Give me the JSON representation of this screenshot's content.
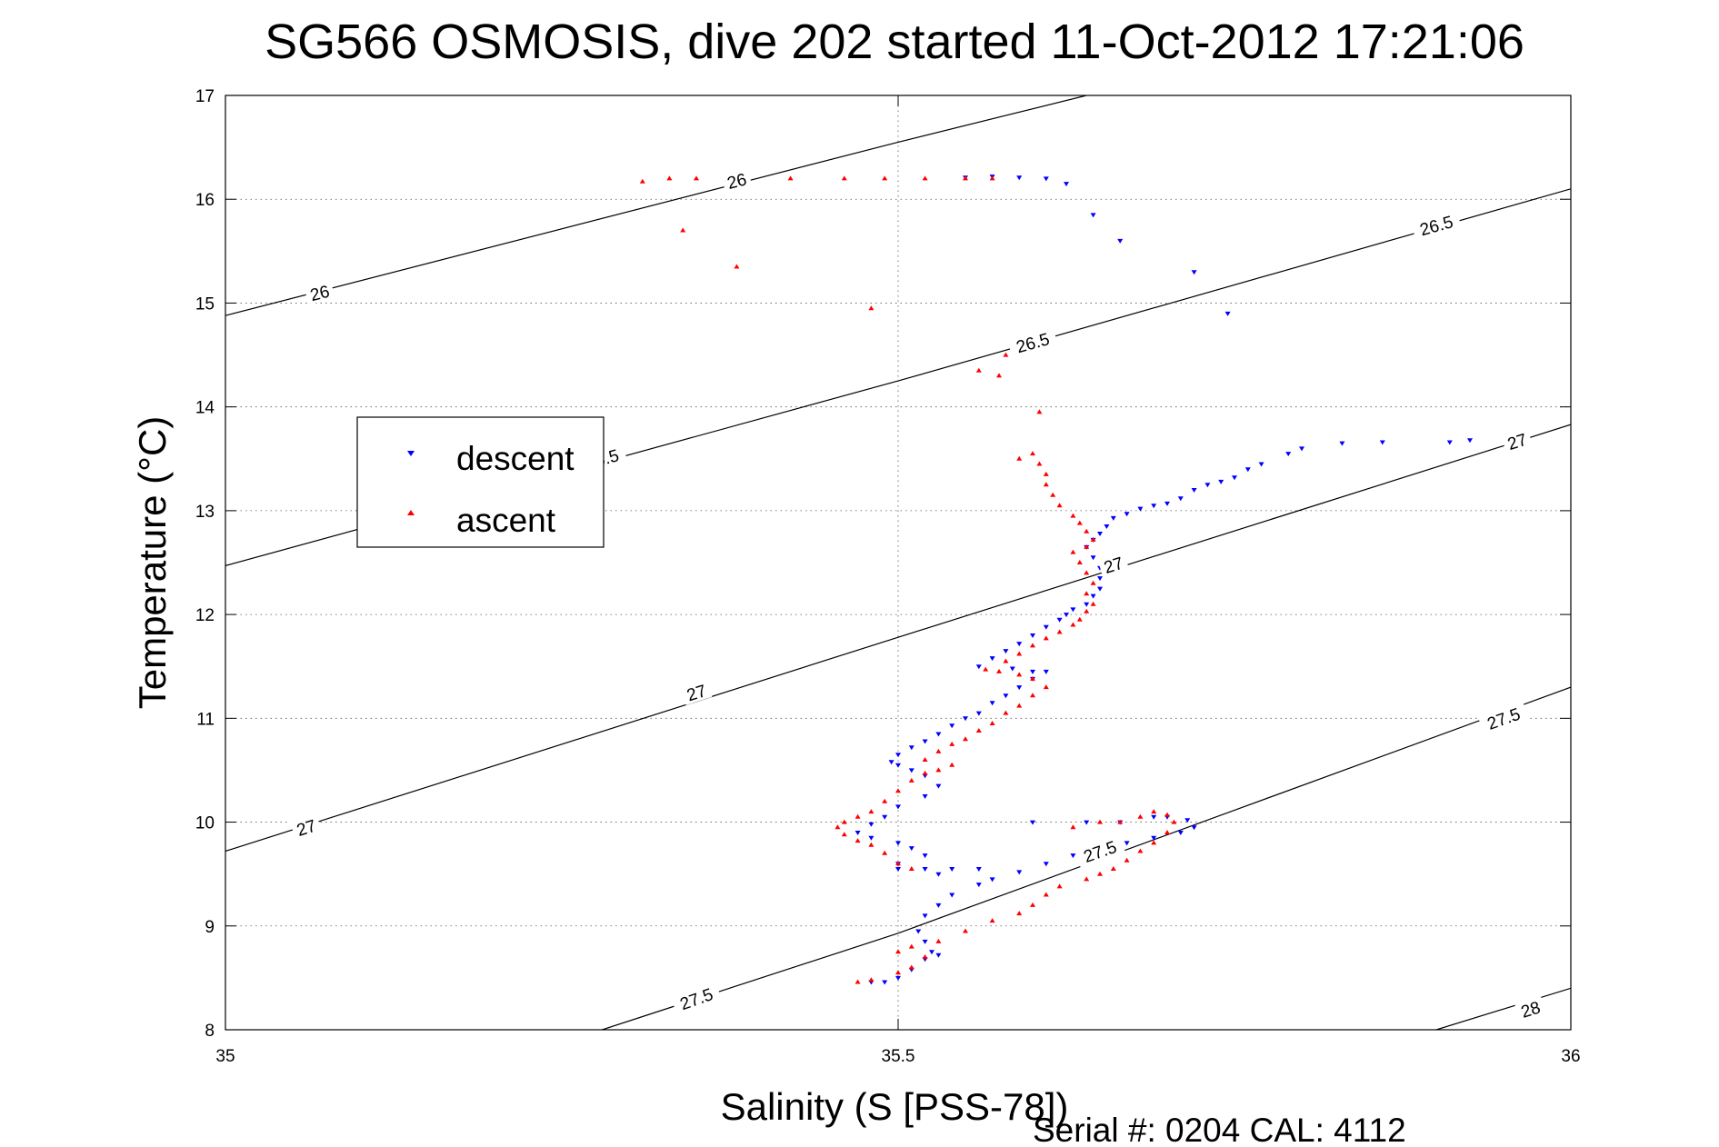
{
  "chart_data": {
    "type": "scatter",
    "title": "SG566 OSMOSIS, dive 202 started 11-Oct-2012 17:21:06",
    "xlabel": "Salinity (S [PSS-78])",
    "ylabel": "Temperature (°C)",
    "xlim": [
      35,
      36
    ],
    "ylim": [
      8,
      17
    ],
    "x_ticks": [
      "35",
      "35.5",
      "36"
    ],
    "y_ticks": [
      "8",
      "9",
      "10",
      "11",
      "12",
      "13",
      "14",
      "15",
      "16",
      "17"
    ],
    "grid": true,
    "legend_position": "left",
    "footer": "Serial #: 0204  CAL: 4112",
    "series": [
      {
        "name": "descent",
        "color": "#0000ff",
        "marker": "triangle-down",
        "points": [
          [
            35.55,
            16.21
          ],
          [
            35.57,
            16.22
          ],
          [
            35.59,
            16.21
          ],
          [
            35.61,
            16.2
          ],
          [
            35.625,
            16.15
          ],
          [
            35.645,
            15.85
          ],
          [
            35.665,
            15.6
          ],
          [
            35.72,
            15.3
          ],
          [
            35.745,
            14.9
          ],
          [
            35.925,
            13.68
          ],
          [
            35.91,
            13.66
          ],
          [
            35.86,
            13.66
          ],
          [
            35.83,
            13.65
          ],
          [
            35.8,
            13.6
          ],
          [
            35.79,
            13.55
          ],
          [
            35.77,
            13.45
          ],
          [
            35.76,
            13.4
          ],
          [
            35.75,
            13.32
          ],
          [
            35.74,
            13.28
          ],
          [
            35.73,
            13.25
          ],
          [
            35.72,
            13.2
          ],
          [
            35.71,
            13.12
          ],
          [
            35.7,
            13.07
          ],
          [
            35.69,
            13.05
          ],
          [
            35.68,
            13.02
          ],
          [
            35.67,
            12.97
          ],
          [
            35.66,
            12.93
          ],
          [
            35.655,
            12.85
          ],
          [
            35.65,
            12.78
          ],
          [
            35.645,
            12.72
          ],
          [
            35.64,
            12.65
          ],
          [
            35.645,
            12.55
          ],
          [
            35.65,
            12.45
          ],
          [
            35.65,
            12.35
          ],
          [
            35.65,
            12.25
          ],
          [
            35.645,
            12.18
          ],
          [
            35.64,
            12.1
          ],
          [
            35.63,
            12.05
          ],
          [
            35.625,
            12.0
          ],
          [
            35.62,
            11.95
          ],
          [
            35.61,
            11.88
          ],
          [
            35.6,
            11.8
          ],
          [
            35.59,
            11.72
          ],
          [
            35.58,
            11.65
          ],
          [
            35.57,
            11.58
          ],
          [
            35.56,
            11.5
          ],
          [
            35.585,
            11.48
          ],
          [
            35.6,
            11.45
          ],
          [
            35.61,
            11.45
          ],
          [
            35.6,
            11.38
          ],
          [
            35.59,
            11.3
          ],
          [
            35.58,
            11.22
          ],
          [
            35.57,
            11.15
          ],
          [
            35.56,
            11.05
          ],
          [
            35.55,
            11.0
          ],
          [
            35.54,
            10.93
          ],
          [
            35.53,
            10.85
          ],
          [
            35.52,
            10.78
          ],
          [
            35.51,
            10.72
          ],
          [
            35.5,
            10.65
          ],
          [
            35.495,
            10.58
          ],
          [
            35.5,
            10.55
          ],
          [
            35.51,
            10.5
          ],
          [
            35.52,
            10.45
          ],
          [
            35.53,
            10.35
          ],
          [
            35.52,
            10.25
          ],
          [
            35.5,
            10.15
          ],
          [
            35.49,
            10.05
          ],
          [
            35.48,
            9.98
          ],
          [
            35.47,
            9.9
          ],
          [
            35.48,
            9.85
          ],
          [
            35.5,
            9.8
          ],
          [
            35.51,
            9.75
          ],
          [
            35.52,
            9.68
          ],
          [
            35.5,
            9.6
          ],
          [
            35.5,
            9.55
          ],
          [
            35.52,
            9.55
          ],
          [
            35.53,
            9.5
          ],
          [
            35.54,
            9.55
          ],
          [
            35.56,
            9.55
          ],
          [
            35.6,
            10.0
          ],
          [
            35.64,
            10.0
          ],
          [
            35.665,
            10.0
          ],
          [
            35.69,
            10.05
          ],
          [
            35.7,
            10.05
          ],
          [
            35.715,
            10.02
          ],
          [
            35.72,
            9.95
          ],
          [
            35.71,
            9.9
          ],
          [
            35.69,
            9.85
          ],
          [
            35.67,
            9.8
          ],
          [
            35.65,
            9.75
          ],
          [
            35.63,
            9.68
          ],
          [
            35.61,
            9.6
          ],
          [
            35.59,
            9.52
          ],
          [
            35.57,
            9.45
          ],
          [
            35.56,
            9.4
          ],
          [
            35.54,
            9.3
          ],
          [
            35.53,
            9.2
          ],
          [
            35.52,
            9.1
          ],
          [
            35.515,
            8.95
          ],
          [
            35.52,
            8.85
          ],
          [
            35.525,
            8.75
          ],
          [
            35.53,
            8.72
          ],
          [
            35.52,
            8.68
          ],
          [
            35.51,
            8.58
          ],
          [
            35.5,
            8.5
          ],
          [
            35.49,
            8.46
          ],
          [
            35.48,
            8.46
          ]
        ]
      },
      {
        "name": "ascent",
        "color": "#ff0000",
        "marker": "triangle-up",
        "points": [
          [
            35.47,
            8.46
          ],
          [
            35.48,
            8.48
          ],
          [
            35.5,
            8.55
          ],
          [
            35.51,
            8.6
          ],
          [
            35.52,
            8.7
          ],
          [
            35.5,
            8.75
          ],
          [
            35.51,
            8.8
          ],
          [
            35.53,
            8.85
          ],
          [
            35.55,
            8.95
          ],
          [
            35.57,
            9.05
          ],
          [
            35.59,
            9.12
          ],
          [
            35.6,
            9.2
          ],
          [
            35.61,
            9.3
          ],
          [
            35.62,
            9.38
          ],
          [
            35.64,
            9.45
          ],
          [
            35.65,
            9.5
          ],
          [
            35.66,
            9.55
          ],
          [
            35.67,
            9.63
          ],
          [
            35.68,
            9.72
          ],
          [
            35.69,
            9.8
          ],
          [
            35.7,
            9.9
          ],
          [
            35.705,
            10.0
          ],
          [
            35.7,
            10.07
          ],
          [
            35.69,
            10.1
          ],
          [
            35.68,
            10.05
          ],
          [
            35.665,
            10.0
          ],
          [
            35.65,
            10.0
          ],
          [
            35.63,
            9.95
          ],
          [
            35.51,
            9.55
          ],
          [
            35.5,
            9.6
          ],
          [
            35.49,
            9.7
          ],
          [
            35.48,
            9.78
          ],
          [
            35.47,
            9.82
          ],
          [
            35.46,
            9.88
          ],
          [
            35.455,
            9.95
          ],
          [
            35.46,
            10.0
          ],
          [
            35.47,
            10.05
          ],
          [
            35.48,
            10.1
          ],
          [
            35.49,
            10.2
          ],
          [
            35.5,
            10.3
          ],
          [
            35.51,
            10.4
          ],
          [
            35.52,
            10.47
          ],
          [
            35.53,
            10.5
          ],
          [
            35.54,
            10.55
          ],
          [
            35.52,
            10.6
          ],
          [
            35.53,
            10.68
          ],
          [
            35.54,
            10.75
          ],
          [
            35.55,
            10.8
          ],
          [
            35.56,
            10.88
          ],
          [
            35.57,
            10.95
          ],
          [
            35.58,
            11.05
          ],
          [
            35.59,
            11.12
          ],
          [
            35.6,
            11.22
          ],
          [
            35.61,
            11.3
          ],
          [
            35.6,
            11.38
          ],
          [
            35.59,
            11.42
          ],
          [
            35.575,
            11.45
          ],
          [
            35.565,
            11.47
          ],
          [
            35.58,
            11.55
          ],
          [
            35.59,
            11.62
          ],
          [
            35.6,
            11.7
          ],
          [
            35.61,
            11.77
          ],
          [
            35.62,
            11.83
          ],
          [
            35.63,
            11.9
          ],
          [
            35.635,
            11.95
          ],
          [
            35.64,
            12.03
          ],
          [
            35.645,
            12.1
          ],
          [
            35.64,
            12.2
          ],
          [
            35.645,
            12.3
          ],
          [
            35.64,
            12.4
          ],
          [
            35.635,
            12.5
          ],
          [
            35.63,
            12.6
          ],
          [
            35.64,
            12.65
          ],
          [
            35.645,
            12.72
          ],
          [
            35.64,
            12.8
          ],
          [
            35.635,
            12.88
          ],
          [
            35.63,
            12.95
          ],
          [
            35.62,
            13.05
          ],
          [
            35.615,
            13.15
          ],
          [
            35.61,
            13.25
          ],
          [
            35.61,
            13.35
          ],
          [
            35.605,
            13.45
          ],
          [
            35.6,
            13.55
          ],
          [
            35.59,
            13.5
          ],
          [
            35.605,
            13.95
          ],
          [
            35.575,
            14.3
          ],
          [
            35.58,
            14.5
          ],
          [
            35.59,
            14.55
          ],
          [
            35.57,
            16.2
          ],
          [
            35.55,
            16.2
          ],
          [
            35.52,
            16.2
          ],
          [
            35.49,
            16.2
          ],
          [
            35.46,
            16.2
          ],
          [
            35.42,
            16.2
          ],
          [
            35.38,
            16.2
          ],
          [
            35.35,
            16.2
          ],
          [
            35.33,
            16.2
          ],
          [
            35.31,
            16.17
          ],
          [
            35.34,
            15.7
          ],
          [
            35.38,
            15.35
          ],
          [
            35.48,
            14.95
          ],
          [
            35.56,
            14.35
          ]
        ]
      }
    ],
    "contours": [
      {
        "label": "26",
        "points": [
          [
            35,
            14.88
          ],
          [
            35.5,
            16.55
          ],
          [
            35.64,
            17.0
          ]
        ],
        "labels_at": [
          [
            35.07,
            15.1
          ],
          [
            35.38,
            16.18
          ]
        ]
      },
      {
        "label": "26.5",
        "points": [
          [
            35,
            12.47
          ],
          [
            35.5,
            14.25
          ],
          [
            36,
            16.1
          ]
        ],
        "labels_at": [
          [
            35.28,
            13.5
          ],
          [
            35.6,
            14.62
          ],
          [
            35.9,
            15.75
          ]
        ]
      },
      {
        "label": "27",
        "points": [
          [
            35,
            9.72
          ],
          [
            35.5,
            11.78
          ],
          [
            36,
            13.83
          ]
        ],
        "labels_at": [
          [
            35.06,
            9.95
          ],
          [
            35.35,
            11.25
          ],
          [
            35.66,
            12.48
          ],
          [
            35.96,
            13.67
          ]
        ]
      },
      {
        "label": "27.5",
        "points": [
          [
            35.28,
            8.0
          ],
          [
            35.5,
            8.93
          ],
          [
            36,
            11.3
          ]
        ],
        "labels_at": [
          [
            35.35,
            8.3
          ],
          [
            35.65,
            9.72
          ],
          [
            35.95,
            11.0
          ]
        ]
      },
      {
        "label": "28",
        "points": [
          [
            35.9,
            8.0
          ],
          [
            36,
            8.4
          ]
        ],
        "labels_at": [
          [
            35.97,
            8.2
          ]
        ]
      }
    ]
  }
}
